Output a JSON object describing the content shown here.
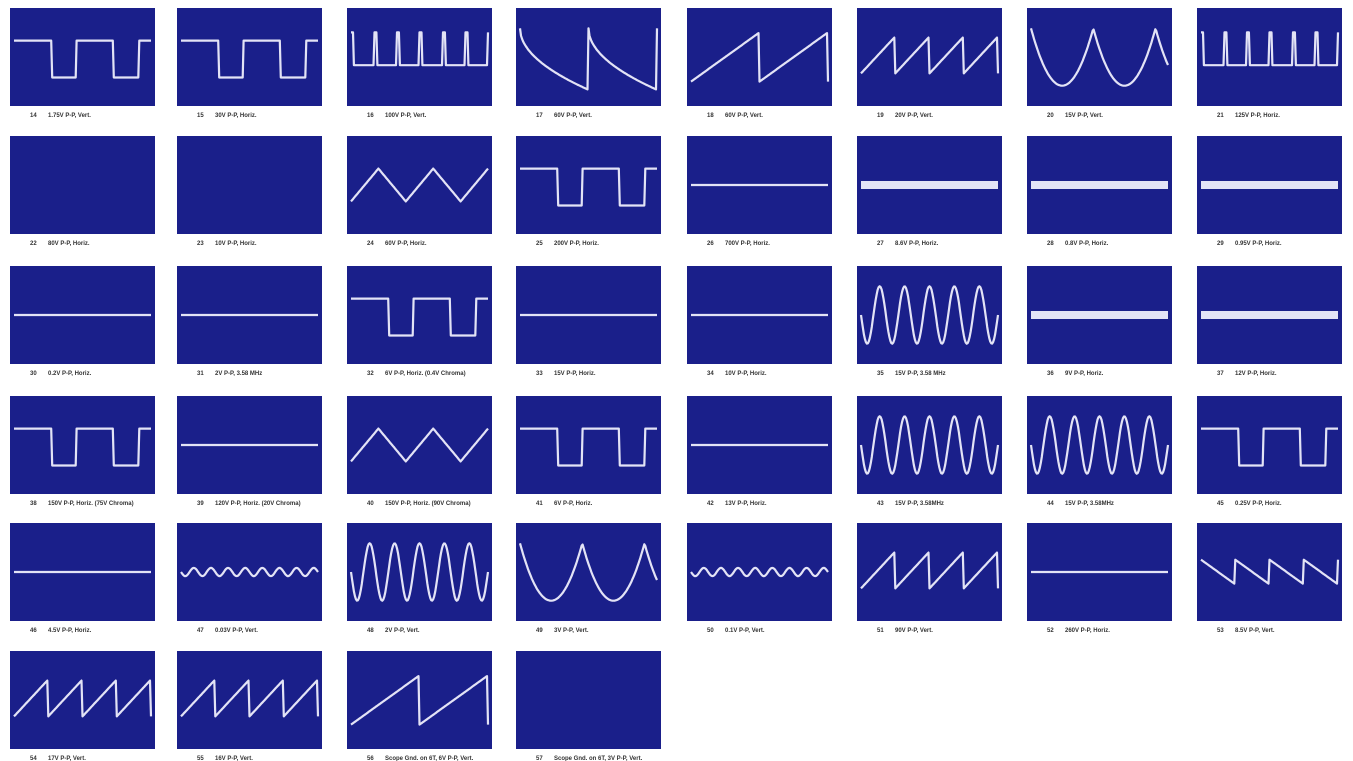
{
  "panels": [
    {
      "number": "14",
      "caption": "1.75V P-P, Vert."
    },
    {
      "number": "15",
      "caption": "30V P-P, Horiz."
    },
    {
      "number": "16",
      "caption": "100V P-P, Vert."
    },
    {
      "number": "17",
      "caption": "60V P-P, Vert."
    },
    {
      "number": "18",
      "caption": "60V P-P, Vert."
    },
    {
      "number": "19",
      "caption": "20V P-P, Vert."
    },
    {
      "number": "20",
      "caption": "15V P-P, Vert."
    },
    {
      "number": "21",
      "caption": "125V P-P, Horiz."
    },
    {
      "number": "22",
      "caption": "80V P-P, Horiz."
    },
    {
      "number": "23",
      "caption": "10V P-P, Horiz."
    },
    {
      "number": "24",
      "caption": "60V P-P, Horiz."
    },
    {
      "number": "25",
      "caption": "200V P-P, Horiz."
    },
    {
      "number": "26",
      "caption": "700V P-P, Horiz."
    },
    {
      "number": "27",
      "caption": "8.6V P-P, Horiz."
    },
    {
      "number": "28",
      "caption": "0.8V P-P, Horiz."
    },
    {
      "number": "29",
      "caption": "0.95V P-P, Horiz."
    },
    {
      "number": "30",
      "caption": "0.2V P-P, Horiz."
    },
    {
      "number": "31",
      "caption": "2V P-P, 3.58 MHz"
    },
    {
      "number": "32",
      "caption": "6V P-P, Horiz. (0.4V Chroma)"
    },
    {
      "number": "33",
      "caption": "15V P-P, Horiz."
    },
    {
      "number": "34",
      "caption": "10V P-P, Horiz."
    },
    {
      "number": "35",
      "caption": "15V P-P, 3.58 MHz"
    },
    {
      "number": "36",
      "caption": "9V P-P, Horiz."
    },
    {
      "number": "37",
      "caption": "12V P-P, Horiz."
    },
    {
      "number": "38",
      "caption": "150V P-P, Horiz. (75V Chroma)"
    },
    {
      "number": "39",
      "caption": "120V P-P, Horiz. (20V Chroma)"
    },
    {
      "number": "40",
      "caption": "150V P-P, Horiz. (90V Chroma)"
    },
    {
      "number": "41",
      "caption": "6V P-P, Horiz."
    },
    {
      "number": "42",
      "caption": "13V P-P, Horiz."
    },
    {
      "number": "43",
      "caption": "15V P-P, 3.58MHz"
    },
    {
      "number": "44",
      "caption": "15V P-P, 3.58MHz"
    },
    {
      "number": "45",
      "caption": "0.25V P-P, Horiz."
    },
    {
      "number": "46",
      "caption": "4.5V P-P, Horiz."
    },
    {
      "number": "47",
      "caption": "0.03V P-P, Vert."
    },
    {
      "number": "48",
      "caption": "2V P-P, Vert."
    },
    {
      "number": "49",
      "caption": "3V P-P, Vert."
    },
    {
      "number": "50",
      "caption": "0.1V P-P, Vert."
    },
    {
      "number": "51",
      "caption": "90V P-P, Vert."
    },
    {
      "number": "52",
      "caption": "260V P-P, Horiz."
    },
    {
      "number": "53",
      "caption": "8.5V P-P, Vert."
    },
    {
      "number": "54",
      "caption": "17V P-P, Vert."
    },
    {
      "number": "55",
      "caption": "16V P-P, Vert."
    },
    {
      "number": "56",
      "caption": "Scope Gnd. on 6T, 6V P-P, Vert."
    },
    {
      "number": "57",
      "caption": "Scope Gnd. on 6T, 3V P-P, Vert."
    }
  ]
}
